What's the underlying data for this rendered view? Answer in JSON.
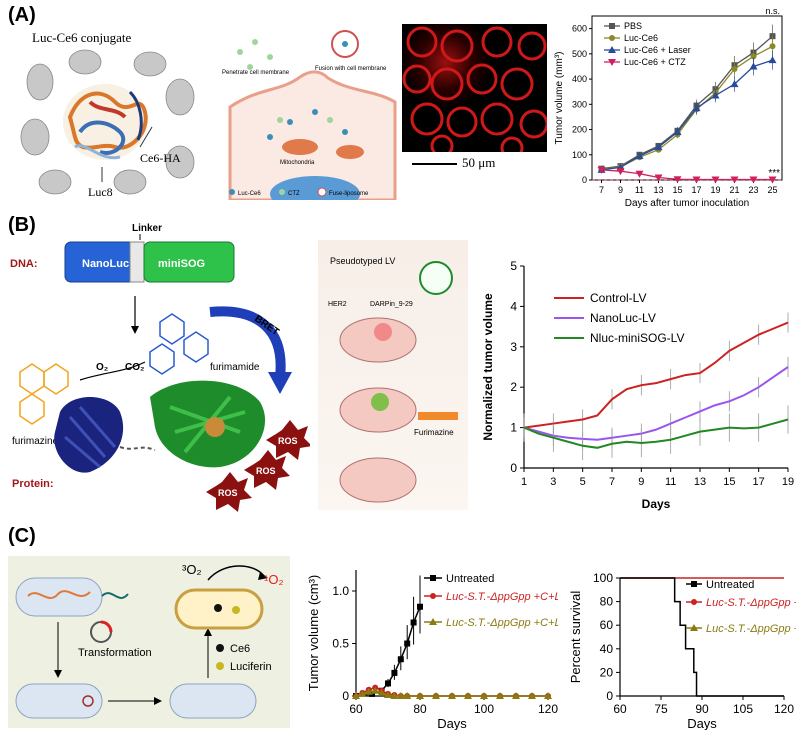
{
  "figure": {
    "panels": [
      {
        "letter": "(A)"
      },
      {
        "letter": "(B)"
      },
      {
        "letter": "(C)"
      }
    ]
  },
  "panelA": {
    "conjugate_title": "Luc-Ce6 conjugate",
    "ce6_label": "Ce6-HA",
    "luc_label": "Luc8",
    "mech": {
      "penetrate": "Penetrate cell membrane",
      "fusion": "Fusion with cell membrane",
      "mito": "Mitochondria",
      "legend1": "Luc-Ce6",
      "legend2": "CTZ",
      "legend3": "Fuse-liposome"
    },
    "scale_bar": "50 μm"
  },
  "panelB": {
    "dna_label": "DNA:",
    "protein_label": "Protein:",
    "linker": "Linker",
    "nanoluc": "NanoLuc",
    "minisog": "miniSOG",
    "o2": "O₂",
    "co2": "CO₂",
    "furimazine": "furimazine",
    "furimamide": "furimamide",
    "bret": "BRET",
    "ros": "ROS",
    "pseudotyped": "Pseudotyped LV",
    "her2": "HER2",
    "darpin": "DARPin_9-29",
    "furimazine_syringe": "Furimazine"
  },
  "panelC": {
    "o2_triplet": "³O₂",
    "o2_singlet": "¹O₂",
    "transformation": "Transformation",
    "ce6": "Ce6",
    "luciferin": "Luciferin"
  },
  "chart_data": [
    {
      "id": "A-tumor",
      "type": "line",
      "xlabel": "Days after tumor inoculation",
      "ylabel": "Tumor volume (mm³)",
      "x": [
        7,
        9,
        11,
        13,
        15,
        17,
        19,
        21,
        23,
        25
      ],
      "xlim": [
        6,
        26
      ],
      "ylim": [
        0,
        650
      ],
      "yticks": [
        0,
        100,
        200,
        300,
        400,
        500,
        600
      ],
      "annotations": [
        "n.s.",
        "***"
      ],
      "series": [
        {
          "name": "PBS",
          "color": "#555555",
          "marker": "square",
          "values": [
            45,
            55,
            100,
            135,
            195,
            295,
            360,
            455,
            505,
            570
          ]
        },
        {
          "name": "Luc-Ce6",
          "color": "#8a8a2a",
          "marker": "circle",
          "values": [
            42,
            52,
            90,
            120,
            180,
            280,
            345,
            440,
            490,
            530
          ]
        },
        {
          "name": "Luc-Ce6 + Laser",
          "color": "#2a4a9a",
          "marker": "triangle",
          "values": [
            40,
            50,
            95,
            130,
            190,
            285,
            335,
            380,
            450,
            475
          ]
        },
        {
          "name": "Luc-Ce6 + CTZ",
          "color": "#d02060",
          "marker": "triangle-down",
          "values": [
            40,
            35,
            25,
            10,
            3,
            2,
            2,
            2,
            2,
            2
          ]
        }
      ]
    },
    {
      "id": "B-tumor",
      "type": "line",
      "xlabel": "Days",
      "ylabel": "Normalized tumor volume",
      "x": [
        1,
        2,
        3,
        4,
        5,
        6,
        7,
        8,
        9,
        10,
        11,
        12,
        13,
        14,
        15,
        16,
        17,
        18,
        19
      ],
      "xticks": [
        1,
        3,
        5,
        7,
        9,
        11,
        13,
        15,
        17,
        19
      ],
      "ylim": [
        0,
        5
      ],
      "yticks": [
        0,
        1,
        2,
        3,
        4,
        5
      ],
      "series": [
        {
          "name": "Control-LV",
          "color": "#cc2222",
          "values": [
            1.0,
            1.05,
            1.1,
            1.15,
            1.2,
            1.3,
            1.7,
            1.95,
            2.05,
            2.1,
            2.2,
            2.3,
            2.35,
            2.6,
            2.9,
            3.1,
            3.3,
            3.45,
            3.6
          ]
        },
        {
          "name": "NanoLuc-LV",
          "color": "#9955ee",
          "values": [
            1.0,
            0.9,
            0.8,
            0.75,
            0.72,
            0.7,
            0.75,
            0.8,
            0.85,
            0.95,
            1.1,
            1.25,
            1.4,
            1.55,
            1.65,
            1.8,
            2.0,
            2.25,
            2.5
          ]
        },
        {
          "name": "Nluc-miniSOG-LV",
          "color": "#228822",
          "values": [
            1.0,
            0.85,
            0.75,
            0.65,
            0.55,
            0.5,
            0.6,
            0.65,
            0.62,
            0.65,
            0.7,
            0.8,
            0.9,
            0.95,
            1.0,
            0.98,
            1.0,
            1.1,
            1.2
          ]
        }
      ]
    },
    {
      "id": "C-volume",
      "type": "line",
      "xlabel": "Days",
      "ylabel": "Tumor volume (cm³)",
      "xlim": [
        60,
        120
      ],
      "xticks": [
        60,
        80,
        100,
        120
      ],
      "ylim": [
        0,
        1.2
      ],
      "yticks": [
        0.0,
        0.5,
        1.0
      ],
      "ytick_labels": [
        "0",
        "0.5",
        "1.0"
      ],
      "series": [
        {
          "name": "Untreated",
          "color": "#000000",
          "x": [
            60,
            65,
            68,
            70,
            72,
            74,
            76,
            78,
            80
          ],
          "values": [
            0,
            0.02,
            0.05,
            0.12,
            0.22,
            0.35,
            0.5,
            0.7,
            0.85
          ]
        },
        {
          "name": "Luc-S.T.-ΔppGpp +C+L",
          "color": "#cc2222",
          "x": [
            60,
            62,
            64,
            66,
            68,
            70,
            72,
            74,
            76,
            80,
            85,
            90,
            95,
            100,
            105,
            110,
            115,
            120
          ],
          "values": [
            0,
            0.03,
            0.06,
            0.08,
            0.05,
            0.02,
            0.01,
            0,
            0,
            0,
            0,
            0,
            0,
            0,
            0,
            0,
            0,
            0
          ]
        },
        {
          "name": "Luc-S.T.-ΔppGpp +C+L+ALG",
          "color": "#8a7a10",
          "x": [
            60,
            62,
            64,
            66,
            68,
            70,
            72,
            74,
            76,
            80,
            85,
            90,
            95,
            100,
            105,
            110,
            115,
            120
          ],
          "values": [
            0,
            0.02,
            0.04,
            0.05,
            0.03,
            0.01,
            0,
            0,
            0,
            0,
            0,
            0,
            0,
            0,
            0,
            0,
            0,
            0
          ]
        }
      ]
    },
    {
      "id": "C-survival",
      "type": "line",
      "xlabel": "Days",
      "ylabel": "Percent survival",
      "xlim": [
        60,
        120
      ],
      "xticks": [
        60,
        75,
        90,
        105,
        120
      ],
      "ylim": [
        0,
        100
      ],
      "yticks": [
        0,
        20,
        40,
        60,
        80,
        100
      ],
      "series": [
        {
          "name": "Untreated",
          "color": "#000000",
          "steps": [
            [
              60,
              100
            ],
            [
              80,
              100
            ],
            [
              80,
              80
            ],
            [
              82,
              80
            ],
            [
              82,
              60
            ],
            [
              84,
              60
            ],
            [
              84,
              40
            ],
            [
              87,
              40
            ],
            [
              87,
              20
            ],
            [
              88,
              20
            ],
            [
              88,
              0
            ],
            [
              120,
              0
            ]
          ]
        },
        {
          "name": "Luc-S.T.-ΔppGpp +C+L",
          "color": "#cc2222",
          "steps": [
            [
              60,
              100
            ],
            [
              120,
              100
            ]
          ]
        },
        {
          "name": "Luc-S.T.-ΔppGpp +C+L+ALG",
          "color": "#8a7a10",
          "steps": [
            [
              60,
              100
            ],
            [
              120,
              100
            ]
          ]
        }
      ]
    }
  ]
}
